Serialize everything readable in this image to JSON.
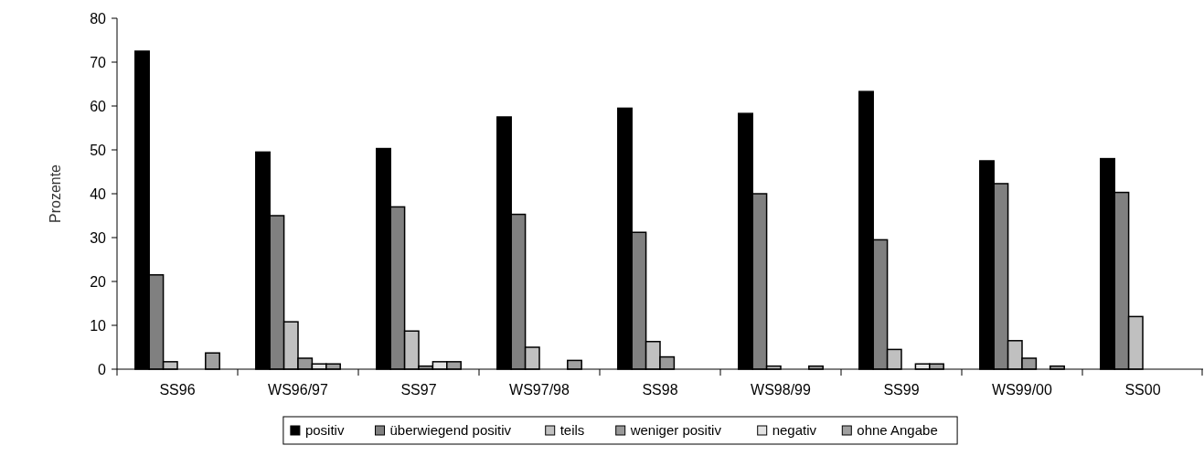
{
  "chart_data": {
    "type": "bar",
    "ylabel": "Prozente",
    "categories": [
      "SS96",
      "WS96/97",
      "SS97",
      "WS97/98",
      "SS98",
      "WS98/99",
      "SS99",
      "WS99/00",
      "SS00"
    ],
    "series": [
      {
        "name": "positiv",
        "color": "#000000",
        "values": [
          72.5,
          49.5,
          50.3,
          57.5,
          59.5,
          58.3,
          63.3,
          47.5,
          48
        ]
      },
      {
        "name": "überwiegend positiv",
        "color": "#808080",
        "values": [
          21.5,
          35,
          37,
          35.3,
          31.2,
          40,
          29.5,
          42.3,
          40.3
        ]
      },
      {
        "name": "teils",
        "color": "#c0c0c0",
        "values": [
          1.7,
          10.8,
          8.7,
          5,
          6.3,
          0.7,
          4.5,
          6.5,
          12
        ]
      },
      {
        "name": "weniger positiv",
        "color": "#999999",
        "values": [
          0,
          2.5,
          0.7,
          0,
          2.8,
          0,
          0,
          2.5,
          0
        ]
      },
      {
        "name": "negativ",
        "color": "#e3e3e3",
        "values": [
          0,
          1.2,
          1.7,
          0,
          0,
          0,
          1.2,
          0,
          0
        ]
      },
      {
        "name": "ohne Angabe",
        "color": "#a0a0a0",
        "values": [
          3.7,
          1.2,
          1.7,
          2,
          0,
          0.7,
          1.2,
          0.7,
          0
        ]
      }
    ],
    "ylim": [
      0,
      80
    ],
    "yticks": [
      0,
      10,
      20,
      30,
      40,
      50,
      60,
      70,
      80
    ],
    "legend": "bottom",
    "grid": false
  }
}
